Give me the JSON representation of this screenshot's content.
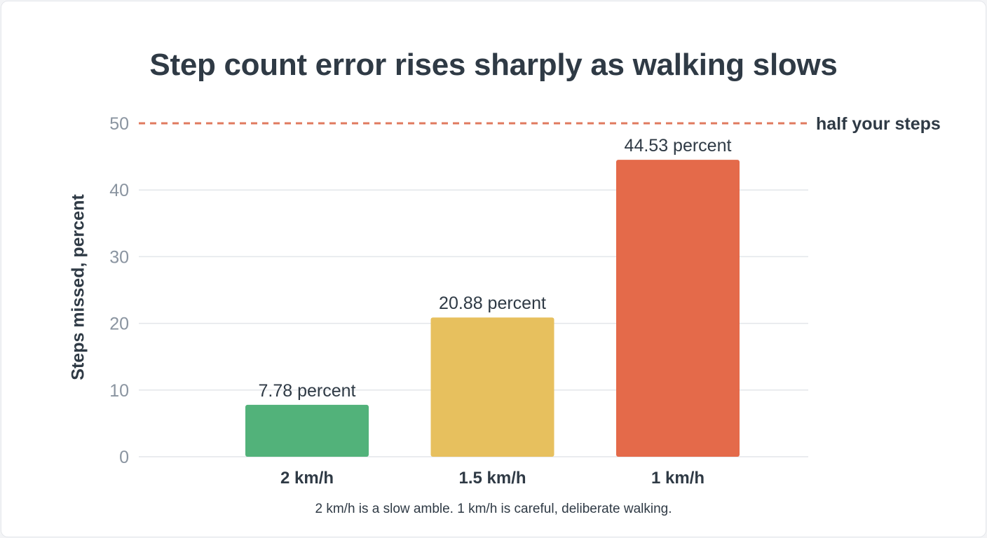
{
  "chart_data": {
    "type": "bar",
    "title": "Step count error rises sharply as walking slows",
    "xlabel": "",
    "ylabel": "Steps missed, percent",
    "ylim": [
      0,
      50
    ],
    "yticks": [
      "0",
      "10",
      "20",
      "30",
      "40",
      "50"
    ],
    "categories": [
      "2 km/h",
      "1.5 km/h",
      "1 km/h"
    ],
    "values": [
      7.78,
      20.88,
      44.53
    ],
    "data_labels": [
      "7.78 percent",
      "20.88 percent",
      "44.53 percent"
    ],
    "bar_colors": [
      "#52b27a",
      "#e7c05e",
      "#e46a4a"
    ],
    "grid": true,
    "reference_line": {
      "value": 50,
      "label": "half your steps",
      "color": "#e07a5f",
      "style": "dashed"
    },
    "footnote": "2 km/h is a slow amble. 1 km/h is careful, deliberate walking."
  }
}
